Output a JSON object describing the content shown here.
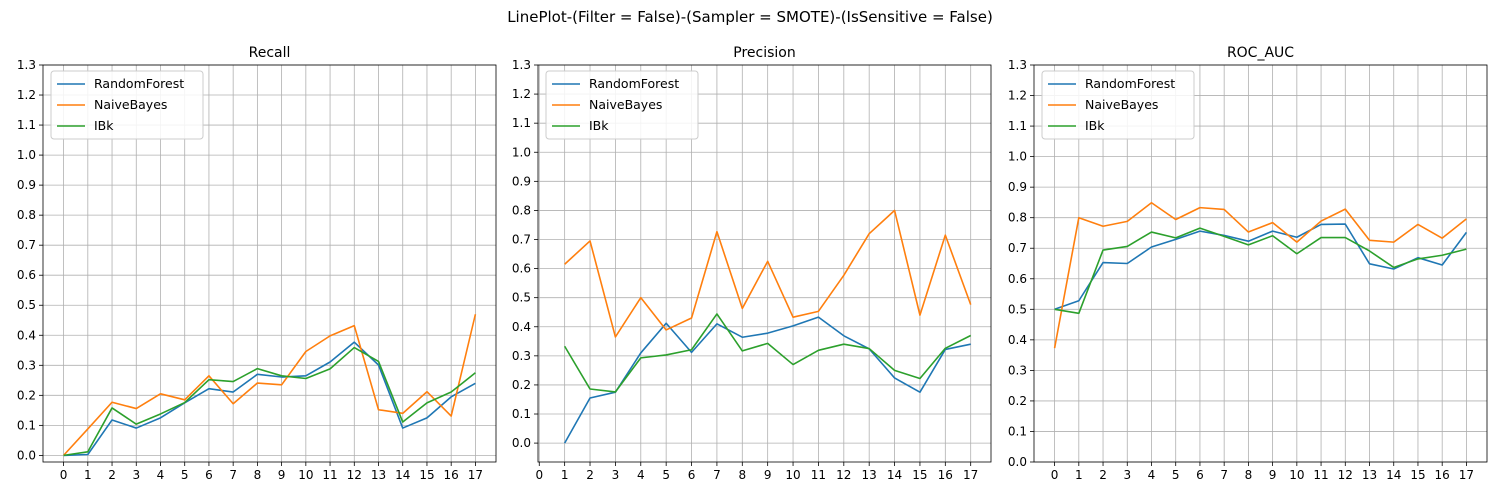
{
  "suptitle": "LinePlot-(Filter = False)-(Sampler = SMOTE)-(IsSensitive = False)",
  "colors": {
    "RandomForest": "#1f77b4",
    "NaiveBayes": "#ff7f0e",
    "IBk": "#2ca02c",
    "grid": "#b0b0b0"
  },
  "chart_data": [
    {
      "type": "line",
      "title": "Recall",
      "x": [
        0,
        1,
        2,
        3,
        4,
        5,
        6,
        7,
        8,
        9,
        10,
        11,
        12,
        13,
        14,
        15,
        16,
        17
      ],
      "xticks": [
        "0",
        "1",
        "2",
        "3",
        "4",
        "5",
        "6",
        "7",
        "8",
        "9",
        "10",
        "11",
        "12",
        "13",
        "14",
        "15",
        "16",
        "17"
      ],
      "yticks": [
        "0.0",
        "0.1",
        "0.2",
        "0.3",
        "0.4",
        "0.5",
        "0.6",
        "0.7",
        "0.8",
        "0.9",
        "1.0",
        "1.1",
        "1.2",
        "1.3"
      ],
      "xlim": [
        -0.85,
        17.85
      ],
      "ylim": [
        -0.022,
        1.3
      ],
      "grid": true,
      "legend": "upper-left",
      "series": [
        {
          "name": "RandomForest",
          "x": [
            0,
            1,
            2,
            3,
            4,
            5,
            6,
            7,
            8,
            9,
            10,
            11,
            12,
            13,
            14,
            15,
            16,
            17
          ],
          "values": [
            0.0,
            0.003,
            0.118,
            0.091,
            0.125,
            0.175,
            0.222,
            0.211,
            0.27,
            0.261,
            0.265,
            0.311,
            0.377,
            0.301,
            0.091,
            0.125,
            0.195,
            0.24
          ]
        },
        {
          "name": "NaiveBayes",
          "x": [
            0,
            1,
            2,
            3,
            4,
            5,
            6,
            7,
            8,
            9,
            10,
            11,
            12,
            13,
            14,
            15,
            16,
            17
          ],
          "values": [
            0.0,
            0.088,
            0.177,
            0.156,
            0.205,
            0.185,
            0.265,
            0.172,
            0.241,
            0.235,
            0.346,
            0.398,
            0.432,
            0.152,
            0.14,
            0.212,
            0.131,
            0.47
          ]
        },
        {
          "name": "IBk",
          "x": [
            0,
            1,
            2,
            3,
            4,
            5,
            6,
            7,
            8,
            9,
            10,
            11,
            12,
            13,
            14,
            15,
            16,
            17
          ],
          "values": [
            0.0,
            0.012,
            0.158,
            0.104,
            0.138,
            0.176,
            0.252,
            0.246,
            0.289,
            0.265,
            0.256,
            0.288,
            0.359,
            0.313,
            0.111,
            0.175,
            0.211,
            0.275
          ]
        }
      ]
    },
    {
      "type": "line",
      "title": "Precision",
      "x": [
        0,
        1,
        2,
        3,
        4,
        5,
        6,
        7,
        8,
        9,
        10,
        11,
        12,
        13,
        14,
        15,
        16,
        17
      ],
      "xticks": [
        "0",
        "1",
        "2",
        "3",
        "4",
        "5",
        "6",
        "7",
        "8",
        "9",
        "10",
        "11",
        "12",
        "13",
        "14",
        "15",
        "16",
        "17"
      ],
      "yticks": [
        "0.0",
        "0.1",
        "0.2",
        "0.3",
        "0.4",
        "0.5",
        "0.6",
        "0.7",
        "0.8",
        "0.9",
        "1.0",
        "1.1",
        "1.2",
        "1.3"
      ],
      "xlim": [
        -0.05,
        17.8
      ],
      "ylim": [
        -0.065,
        1.3
      ],
      "grid": true,
      "legend": "upper-left",
      "series": [
        {
          "name": "RandomForest",
          "x": [
            1,
            2,
            3,
            4,
            5,
            6,
            7,
            8,
            9,
            10,
            11,
            12,
            13,
            14,
            15,
            16,
            17
          ],
          "values": [
            0.0,
            0.155,
            0.175,
            0.31,
            0.412,
            0.312,
            0.41,
            0.364,
            0.378,
            0.403,
            0.433,
            0.369,
            0.324,
            0.224,
            0.175,
            0.322,
            0.34
          ]
        },
        {
          "name": "NaiveBayes",
          "x": [
            1,
            2,
            3,
            4,
            5,
            6,
            7,
            8,
            9,
            10,
            11,
            12,
            13,
            14,
            15,
            16,
            17
          ],
          "values": [
            0.615,
            0.695,
            0.365,
            0.5,
            0.389,
            0.43,
            0.727,
            0.463,
            0.625,
            0.433,
            0.453,
            0.577,
            0.72,
            0.8,
            0.44,
            0.715,
            0.476
          ]
        },
        {
          "name": "IBk",
          "x": [
            1,
            2,
            3,
            4,
            5,
            6,
            7,
            8,
            9,
            10,
            11,
            12,
            13,
            14,
            15,
            16,
            17
          ],
          "values": [
            0.333,
            0.186,
            0.176,
            0.293,
            0.303,
            0.321,
            0.444,
            0.317,
            0.343,
            0.27,
            0.319,
            0.34,
            0.325,
            0.25,
            0.222,
            0.326,
            0.37
          ]
        }
      ]
    },
    {
      "type": "line",
      "title": "ROC_AUC",
      "x": [
        0,
        1,
        2,
        3,
        4,
        5,
        6,
        7,
        8,
        9,
        10,
        11,
        12,
        13,
        14,
        15,
        16,
        17
      ],
      "xticks": [
        "0",
        "1",
        "2",
        "3",
        "4",
        "5",
        "6",
        "7",
        "8",
        "9",
        "10",
        "11",
        "12",
        "13",
        "14",
        "15",
        "16",
        "17"
      ],
      "yticks": [
        "0.0",
        "0.1",
        "0.2",
        "0.3",
        "0.4",
        "0.5",
        "0.6",
        "0.7",
        "0.8",
        "0.9",
        "1.0",
        "1.1",
        "1.2",
        "1.3"
      ],
      "xlim": [
        -0.85,
        17.85
      ],
      "ylim": [
        0.0,
        1.3
      ],
      "grid": true,
      "legend": "upper-left",
      "series": [
        {
          "name": "RandomForest",
          "x": [
            0,
            1,
            2,
            3,
            4,
            5,
            6,
            7,
            8,
            9,
            10,
            11,
            12,
            13,
            14,
            15,
            16,
            17
          ],
          "values": [
            0.5,
            0.528,
            0.653,
            0.65,
            0.704,
            0.729,
            0.756,
            0.742,
            0.723,
            0.756,
            0.736,
            0.778,
            0.779,
            0.649,
            0.632,
            0.669,
            0.645,
            0.752
          ]
        },
        {
          "name": "NaiveBayes",
          "x": [
            0,
            1,
            2,
            3,
            4,
            5,
            6,
            7,
            8,
            9,
            10,
            11,
            12,
            13,
            14,
            15,
            16,
            17
          ],
          "values": [
            0.373,
            0.8,
            0.772,
            0.788,
            0.849,
            0.794,
            0.833,
            0.827,
            0.753,
            0.784,
            0.72,
            0.789,
            0.828,
            0.726,
            0.72,
            0.778,
            0.733,
            0.796
          ]
        },
        {
          "name": "IBk",
          "x": [
            0,
            1,
            2,
            3,
            4,
            5,
            6,
            7,
            8,
            9,
            10,
            11,
            12,
            13,
            14,
            15,
            16,
            17
          ],
          "values": [
            0.5,
            0.487,
            0.694,
            0.706,
            0.753,
            0.734,
            0.766,
            0.739,
            0.711,
            0.741,
            0.682,
            0.735,
            0.735,
            0.691,
            0.637,
            0.665,
            0.677,
            0.697
          ]
        }
      ]
    }
  ]
}
